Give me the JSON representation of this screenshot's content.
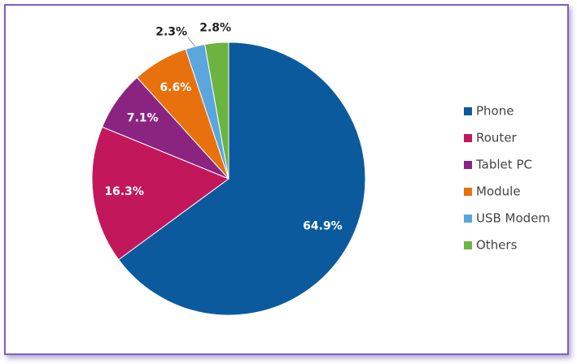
{
  "chart_data": {
    "type": "pie",
    "categories": [
      "Phone",
      "Router",
      "Tablet PC",
      "Module",
      "USB Modem",
      "Others"
    ],
    "values": [
      64.9,
      16.3,
      7.1,
      6.6,
      2.3,
      2.8
    ],
    "value_labels": [
      "64.9%",
      "16.3%",
      "7.1%",
      "6.6%",
      "2.3%",
      "2.8%"
    ],
    "colors": [
      "#0b5a9e",
      "#c2185b",
      "#8b2380",
      "#e8710e",
      "#5aa6dd",
      "#6db33f"
    ],
    "legend": "right"
  }
}
